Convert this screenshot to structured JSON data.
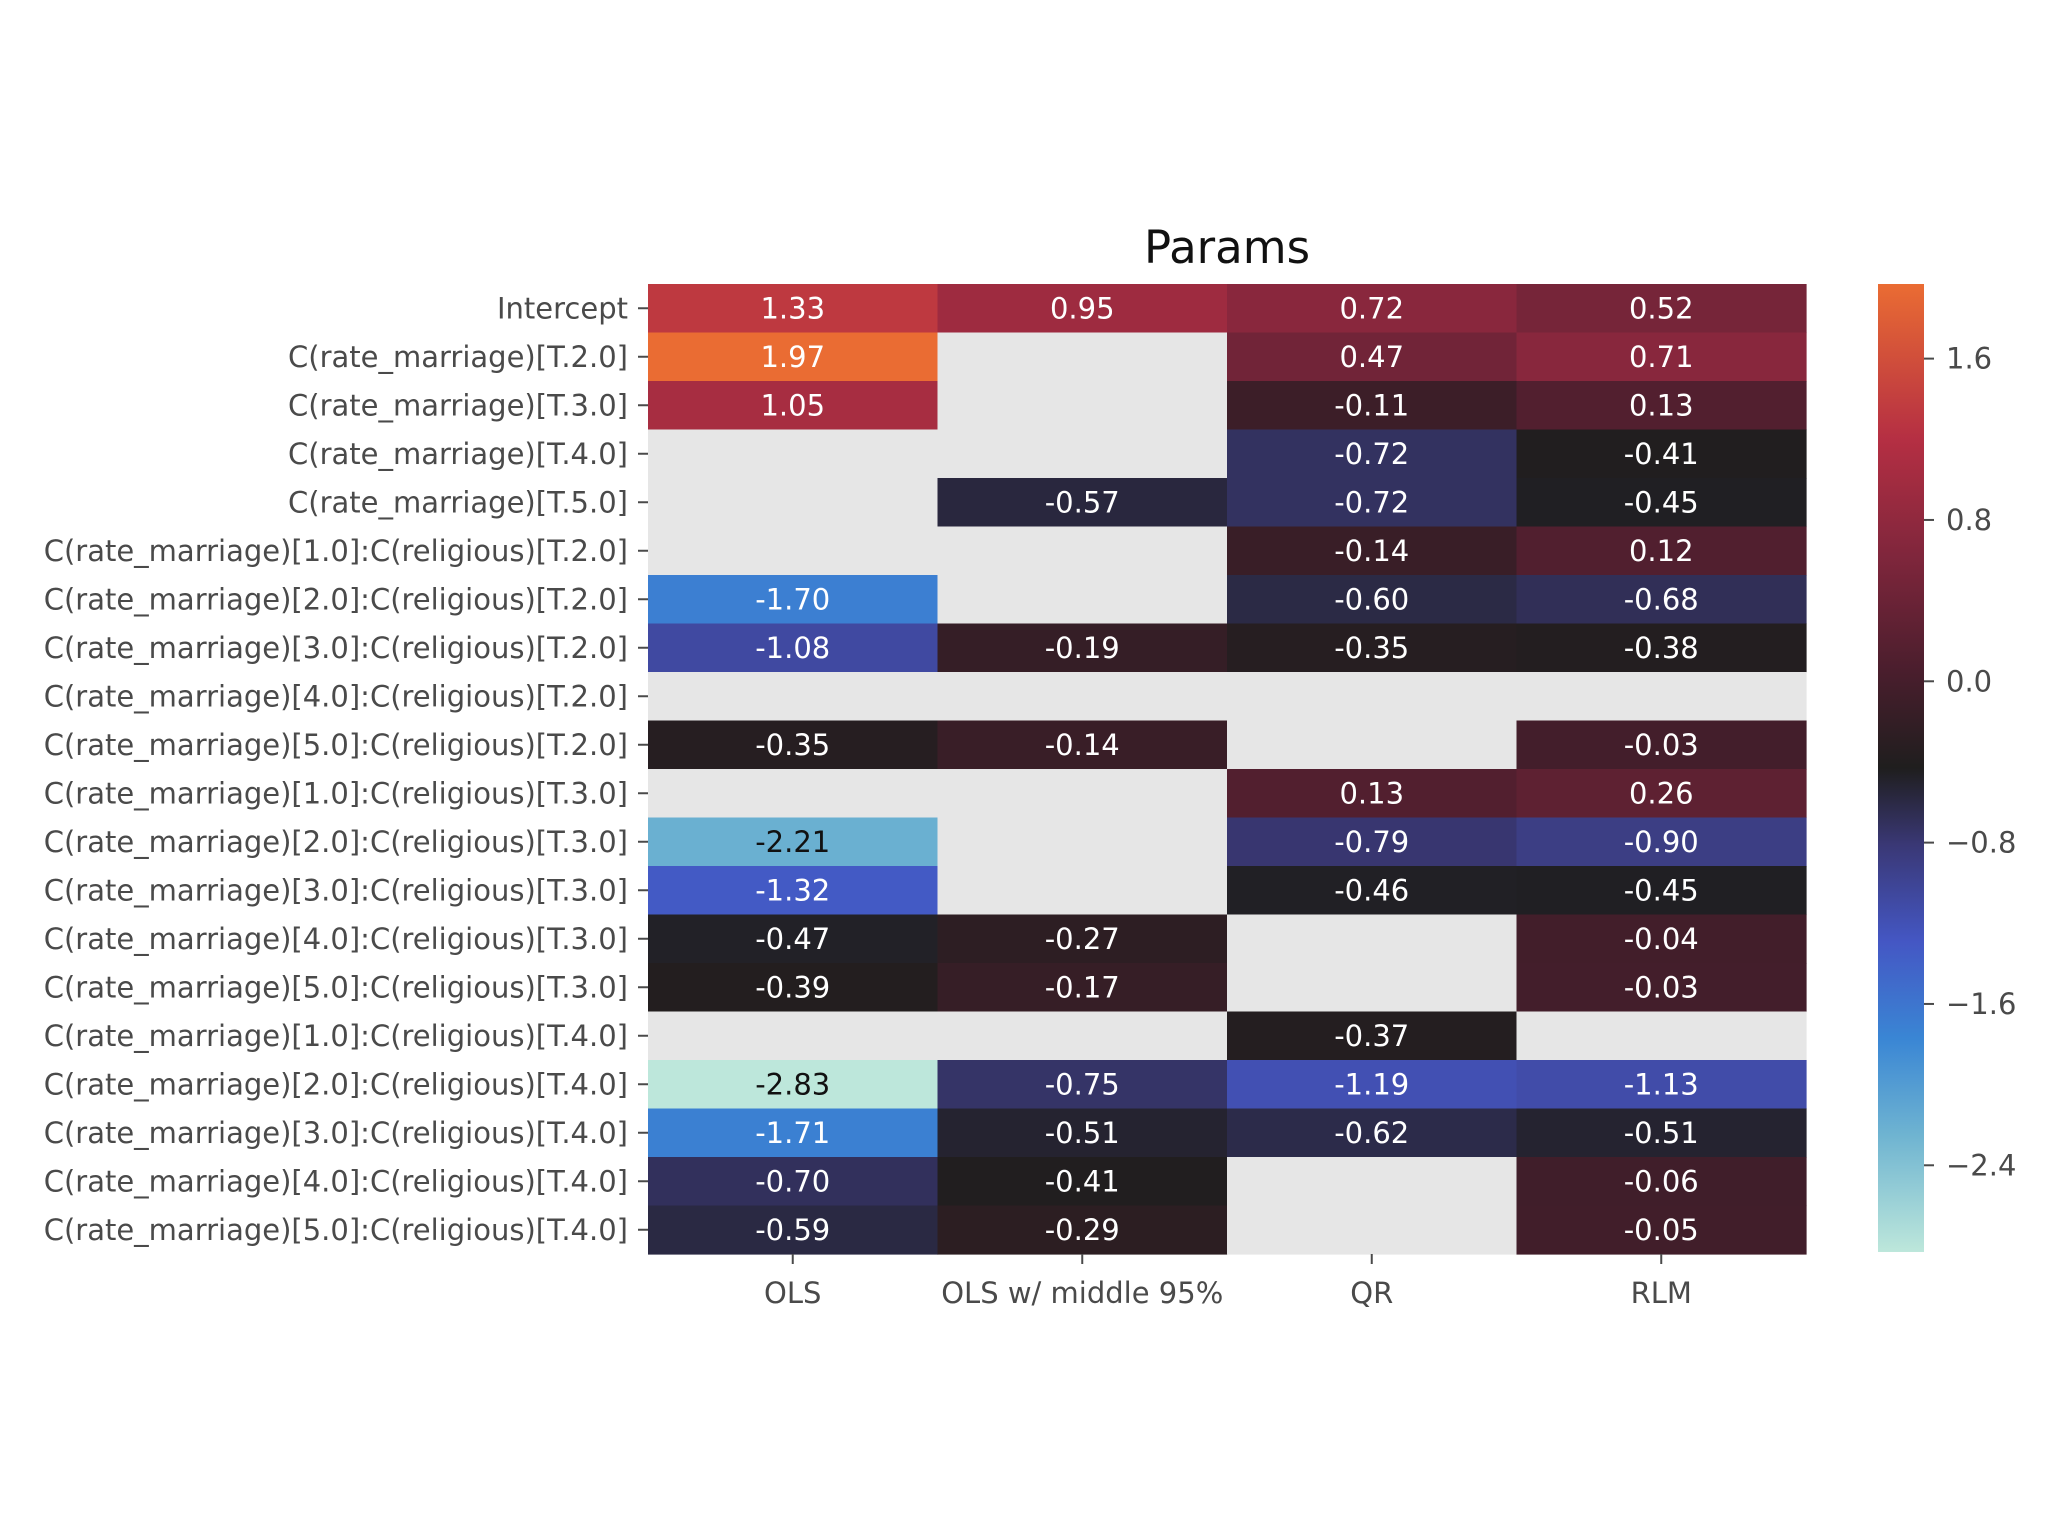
{
  "chart_data": {
    "type": "heatmap",
    "title": "Params",
    "xlabel": "",
    "ylabel": "",
    "columns": [
      "OLS",
      "OLS w/ middle 95%",
      "QR",
      "RLM"
    ],
    "rows": [
      "Intercept",
      "C(rate_marriage)[T.2.0]",
      "C(rate_marriage)[T.3.0]",
      "C(rate_marriage)[T.4.0]",
      "C(rate_marriage)[T.5.0]",
      "C(rate_marriage)[1.0]:C(religious)[T.2.0]",
      "C(rate_marriage)[2.0]:C(religious)[T.2.0]",
      "C(rate_marriage)[3.0]:C(religious)[T.2.0]",
      "C(rate_marriage)[4.0]:C(religious)[T.2.0]",
      "C(rate_marriage)[5.0]:C(religious)[T.2.0]",
      "C(rate_marriage)[1.0]:C(religious)[T.3.0]",
      "C(rate_marriage)[2.0]:C(religious)[T.3.0]",
      "C(rate_marriage)[3.0]:C(religious)[T.3.0]",
      "C(rate_marriage)[4.0]:C(religious)[T.3.0]",
      "C(rate_marriage)[5.0]:C(religious)[T.3.0]",
      "C(rate_marriage)[1.0]:C(religious)[T.4.0]",
      "C(rate_marriage)[2.0]:C(religious)[T.4.0]",
      "C(rate_marriage)[3.0]:C(religious)[T.4.0]",
      "C(rate_marriage)[4.0]:C(religious)[T.4.0]",
      "C(rate_marriage)[5.0]:C(religious)[T.4.0]"
    ],
    "values": [
      [
        1.33,
        0.95,
        0.72,
        0.52
      ],
      [
        1.97,
        null,
        0.47,
        0.71
      ],
      [
        1.05,
        null,
        -0.11,
        0.13
      ],
      [
        null,
        null,
        -0.72,
        -0.41
      ],
      [
        null,
        -0.57,
        -0.72,
        -0.45
      ],
      [
        null,
        null,
        -0.14,
        0.12
      ],
      [
        -1.7,
        null,
        -0.6,
        -0.68
      ],
      [
        -1.08,
        -0.19,
        -0.35,
        -0.38
      ],
      [
        null,
        null,
        null,
        null
      ],
      [
        -0.35,
        -0.14,
        null,
        -0.03
      ],
      [
        null,
        null,
        0.13,
        0.26
      ],
      [
        -2.21,
        null,
        -0.79,
        -0.9
      ],
      [
        -1.32,
        null,
        -0.46,
        -0.45
      ],
      [
        -0.47,
        -0.27,
        null,
        -0.04
      ],
      [
        -0.39,
        -0.17,
        null,
        -0.03
      ],
      [
        null,
        null,
        -0.37,
        null
      ],
      [
        -2.83,
        -0.75,
        -1.19,
        -1.13
      ],
      [
        -1.71,
        -0.51,
        -0.62,
        -0.51
      ],
      [
        -0.7,
        -0.41,
        null,
        -0.06
      ],
      [
        -0.59,
        -0.29,
        null,
        -0.05
      ]
    ],
    "value_format": "0.00",
    "colorscale": {
      "name": "icefire",
      "center": 0,
      "vmin": -2.83,
      "vmax": 1.97,
      "stops": [
        [
          0.0,
          "#bde7db"
        ],
        [
          0.12,
          "#6fb4d1"
        ],
        [
          0.22,
          "#3a86d4"
        ],
        [
          0.32,
          "#4457c4"
        ],
        [
          0.42,
          "#3a3876"
        ],
        [
          0.5,
          "#1f1e1e"
        ],
        [
          0.6,
          "#4a1e2d"
        ],
        [
          0.72,
          "#80263c"
        ],
        [
          0.84,
          "#b52f43"
        ],
        [
          1.0,
          "#ea6c33"
        ]
      ]
    },
    "missing_color": "#e6e6e6",
    "colorbar": {
      "ticks": [
        1.6,
        0.8,
        0.0,
        -0.8,
        -1.6,
        -2.4
      ],
      "tick_labels": [
        "1.6",
        "0.8",
        "0.0",
        "−0.8",
        "−1.6",
        "−2.4"
      ]
    },
    "legend": "colorbar-right",
    "grid": false
  }
}
